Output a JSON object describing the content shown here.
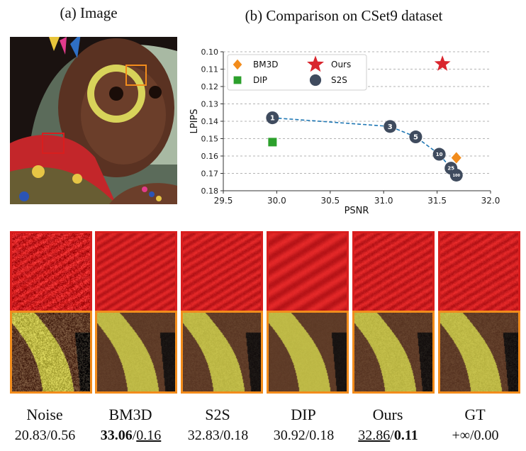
{
  "panel_a_title": "(a) Image",
  "panel_b_title": "(b) Comparison on CSet9 dataset",
  "chart_data": {
    "type": "scatter",
    "xlabel": "PSNR",
    "ylabel": "LPIPS",
    "xlim": [
      29.5,
      32.0
    ],
    "ylim": [
      0.1,
      0.18
    ],
    "y_inverted": true,
    "x_ticks": [
      "29.5",
      "30.0",
      "30.5",
      "31.0",
      "31.5",
      "32.0"
    ],
    "y_ticks": [
      "0.10",
      "0.11",
      "0.12",
      "0.13",
      "0.14",
      "0.15",
      "0.16",
      "0.17",
      "0.18"
    ],
    "legend": {
      "placement": "top-left",
      "entries": [
        {
          "name": "BM3D",
          "marker": "diamond",
          "color": "#f28c1c"
        },
        {
          "name": "Ours",
          "marker": "star",
          "color": "#d9262e"
        },
        {
          "name": "DIP",
          "marker": "square",
          "color": "#2ca02c"
        },
        {
          "name": "S2S",
          "marker": "circle",
          "color": "#3f4b5e"
        }
      ]
    },
    "series": [
      {
        "name": "BM3D",
        "marker": "diamond",
        "color": "#f28c1c",
        "points": [
          {
            "x": 31.68,
            "y": 0.161
          }
        ]
      },
      {
        "name": "Ours",
        "marker": "star",
        "color": "#d9262e",
        "points": [
          {
            "x": 31.55,
            "y": 0.107
          }
        ]
      },
      {
        "name": "DIP",
        "marker": "square",
        "color": "#2ca02c",
        "points": [
          {
            "x": 29.96,
            "y": 0.152
          }
        ]
      },
      {
        "name": "S2S",
        "marker": "circle",
        "color": "#3f4b5e",
        "line": "dashed",
        "line_color": "#1f77b4",
        "points": [
          {
            "x": 29.96,
            "y": 0.138,
            "label": "1"
          },
          {
            "x": 31.06,
            "y": 0.143,
            "label": "3"
          },
          {
            "x": 31.3,
            "y": 0.149,
            "label": "5"
          },
          {
            "x": 31.52,
            "y": 0.159,
            "label": "10"
          },
          {
            "x": 31.63,
            "y": 0.167,
            "label": "25"
          },
          {
            "x": 31.68,
            "y": 0.171,
            "label": "100"
          }
        ]
      }
    ]
  },
  "methods": [
    {
      "name": "Noise",
      "psnr": "20.83",
      "sep": "/",
      "lpips": "0.56"
    },
    {
      "name": "BM3D",
      "psnr": "33.06",
      "sep": "/",
      "lpips": "0.16"
    },
    {
      "name": "S2S",
      "psnr": "32.83",
      "sep": "/",
      "lpips": "0.18"
    },
    {
      "name": "DIP",
      "psnr": "30.92",
      "sep": "/",
      "lpips": "0.18"
    },
    {
      "name": "Ours",
      "psnr": "32.86",
      "sep": "/",
      "lpips": "0.11"
    },
    {
      "name": "GT",
      "psnr": "+∞",
      "sep": "/",
      "lpips": "0.00"
    }
  ],
  "colors": {
    "red_box": "#d81e1e",
    "orange_box": "#f28c1c"
  }
}
